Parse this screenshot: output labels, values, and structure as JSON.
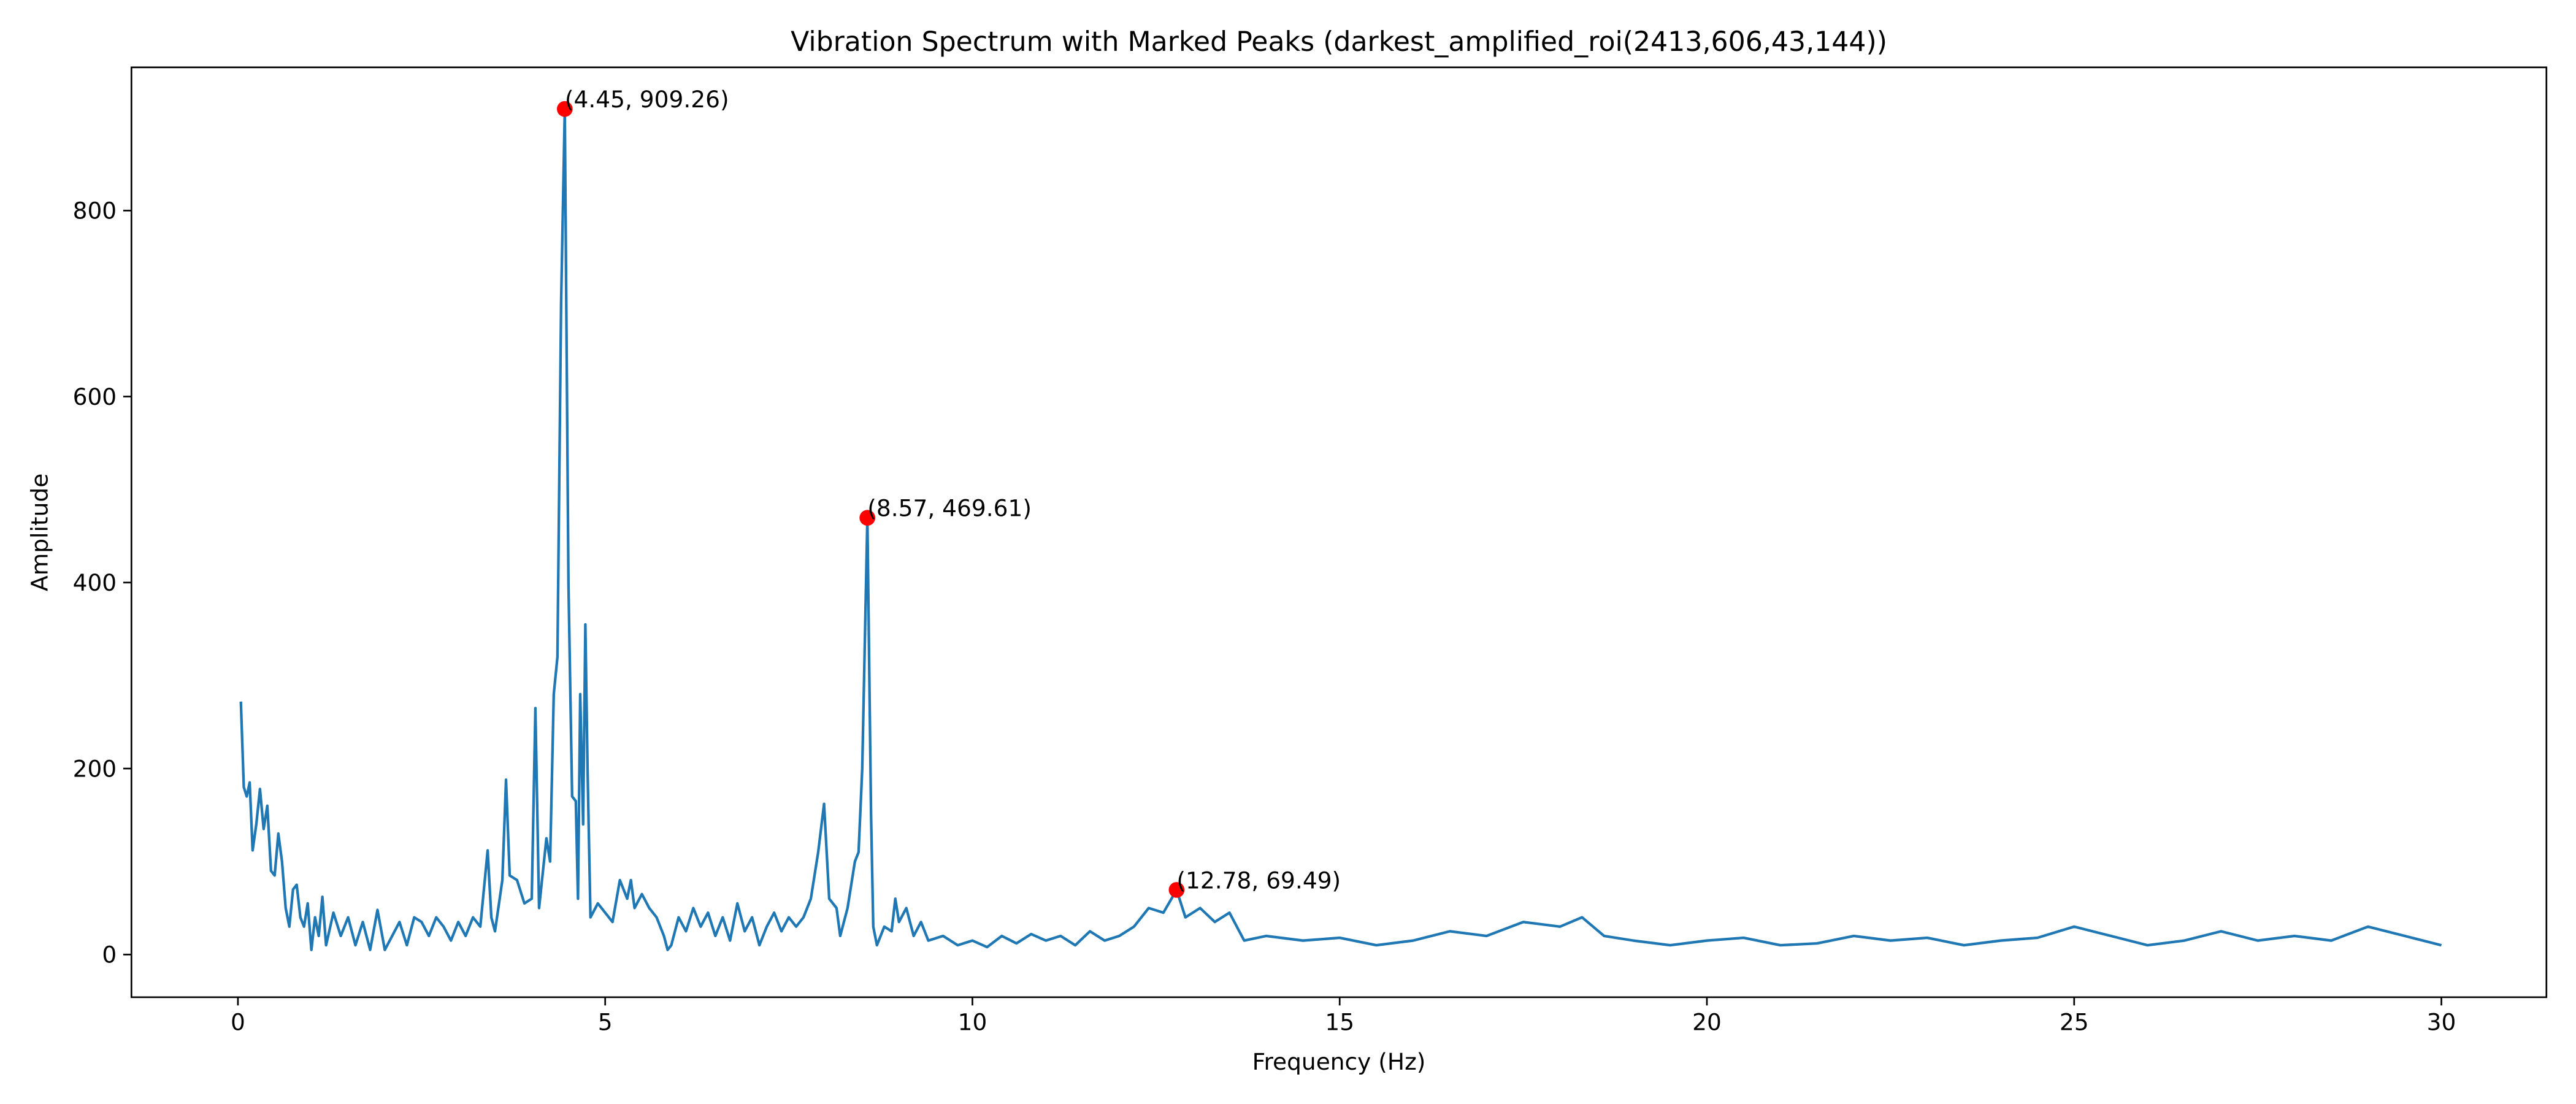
{
  "chart_data": {
    "type": "line",
    "title": "Vibration Spectrum with Marked Peaks (darkest_amplified_roi(2413,606,43,144))",
    "xlabel": "Frequency (Hz)",
    "ylabel": "Amplitude",
    "xlim": [
      -1.45,
      31.43
    ],
    "ylim": [
      -45.9,
      954
    ],
    "xticks": [
      0,
      5,
      10,
      15,
      20,
      25,
      30
    ],
    "yticks": [
      0,
      200,
      400,
      600,
      800
    ],
    "series": [
      {
        "color": "#1f77b4",
        "x": [
          0.04,
          0.08,
          0.12,
          0.16,
          0.2,
          0.25,
          0.3,
          0.35,
          0.4,
          0.45,
          0.5,
          0.55,
          0.6,
          0.65,
          0.7,
          0.75,
          0.8,
          0.85,
          0.9,
          0.95,
          1.0,
          1.05,
          1.1,
          1.15,
          1.2,
          1.3,
          1.4,
          1.5,
          1.6,
          1.7,
          1.8,
          1.9,
          2.0,
          2.1,
          2.2,
          2.3,
          2.4,
          2.5,
          2.6,
          2.7,
          2.8,
          2.9,
          3.0,
          3.1,
          3.2,
          3.3,
          3.4,
          3.45,
          3.5,
          3.6,
          3.65,
          3.7,
          3.8,
          3.9,
          4.0,
          4.05,
          4.1,
          4.2,
          4.25,
          4.3,
          4.35,
          4.4,
          4.45,
          4.5,
          4.55,
          4.6,
          4.63,
          4.66,
          4.7,
          4.73,
          4.76,
          4.8,
          4.9,
          5.0,
          5.1,
          5.2,
          5.3,
          5.35,
          5.4,
          5.5,
          5.6,
          5.7,
          5.8,
          5.85,
          5.9,
          6.0,
          6.1,
          6.2,
          6.3,
          6.4,
          6.5,
          6.6,
          6.7,
          6.8,
          6.9,
          7.0,
          7.1,
          7.2,
          7.3,
          7.4,
          7.5,
          7.6,
          7.7,
          7.8,
          7.9,
          7.98,
          8.05,
          8.15,
          8.2,
          8.3,
          8.4,
          8.45,
          8.5,
          8.57,
          8.62,
          8.65,
          8.7,
          8.8,
          8.9,
          8.95,
          9.0,
          9.1,
          9.2,
          9.3,
          9.4,
          9.6,
          9.8,
          10.0,
          10.2,
          10.4,
          10.6,
          10.8,
          11.0,
          11.2,
          11.4,
          11.6,
          11.8,
          12.0,
          12.2,
          12.4,
          12.6,
          12.78,
          12.9,
          13.1,
          13.3,
          13.5,
          13.7,
          14.0,
          14.5,
          15.0,
          15.5,
          16.0,
          16.5,
          17.0,
          17.5,
          18.0,
          18.3,
          18.6,
          19.0,
          19.5,
          20.0,
          20.5,
          21.0,
          21.5,
          22.0,
          22.5,
          23.0,
          23.5,
          24.0,
          24.5,
          25.0,
          25.5,
          26.0,
          26.5,
          27.0,
          27.5,
          28.0,
          28.5,
          29.0,
          29.5,
          30.0
        ],
        "values": [
          272,
          180,
          170,
          185,
          112,
          140,
          178,
          135,
          160,
          90,
          85,
          130,
          100,
          50,
          30,
          70,
          75,
          40,
          30,
          55,
          5,
          40,
          20,
          62,
          10,
          45,
          20,
          40,
          10,
          35,
          5,
          48,
          5,
          20,
          35,
          10,
          40,
          35,
          20,
          40,
          30,
          15,
          35,
          20,
          40,
          30,
          112,
          40,
          25,
          80,
          188,
          85,
          80,
          55,
          60,
          265,
          50,
          125,
          100,
          280,
          320,
          700,
          909.26,
          400,
          170,
          165,
          60,
          280,
          140,
          355,
          200,
          40,
          55,
          45,
          35,
          80,
          60,
          80,
          50,
          65,
          50,
          40,
          20,
          5,
          10,
          40,
          25,
          50,
          30,
          45,
          20,
          40,
          15,
          55,
          25,
          40,
          10,
          30,
          45,
          25,
          40,
          30,
          40,
          60,
          110,
          162,
          60,
          50,
          20,
          50,
          100,
          110,
          200,
          469.61,
          150,
          30,
          10,
          30,
          25,
          60,
          35,
          50,
          20,
          35,
          15,
          20,
          10,
          15,
          8,
          20,
          12,
          22,
          15,
          20,
          10,
          25,
          15,
          20,
          30,
          50,
          45,
          69.49,
          40,
          50,
          35,
          45,
          15,
          20,
          15,
          18,
          10,
          15,
          25,
          20,
          35,
          30,
          40,
          20,
          15,
          10,
          15,
          18,
          10,
          12,
          20,
          15,
          18,
          10,
          15,
          18,
          30,
          20,
          10,
          15,
          25,
          15,
          20,
          15,
          30,
          20,
          10
        ]
      }
    ],
    "peaks": {
      "color": "#ff0000",
      "x": [
        4.45,
        8.57,
        12.78
      ],
      "values": [
        909.26,
        469.61,
        69.49
      ],
      "value_labels": [
        "(4.45, 909.26)",
        "(8.57, 469.61)",
        "(12.78, 69.49)"
      ]
    }
  }
}
